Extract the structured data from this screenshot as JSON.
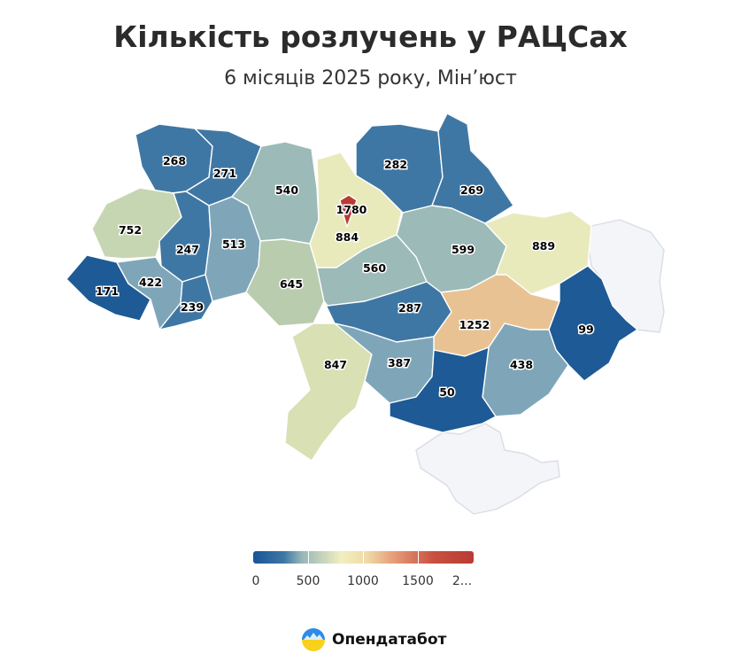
{
  "title": "Кількість розлучень у РАЦСах",
  "subtitle": "6 місяців 2025 року, Мін’юст",
  "map": {
    "value_labels": [
      "268",
      "271",
      "540",
      "1780",
      "282",
      "269",
      "752",
      "247",
      "513",
      "884",
      "599",
      "889",
      "171",
      "422",
      "645",
      "560",
      "239",
      "287",
      "1252",
      "99",
      "847",
      "387",
      "438",
      "50"
    ]
  },
  "legend": {
    "ticks": [
      "0",
      "500",
      "1000",
      "1500",
      "2..."
    ],
    "colors": [
      "#175596",
      "#95b6b8",
      "#f2efc0",
      "#e8a47e",
      "#b83c34"
    ]
  },
  "brand": {
    "name": "Опендатабот",
    "logo_icon": "opendatabot-logo-icon"
  },
  "colors": {
    "very_low": "#1d5a96",
    "low": "#3f77a4",
    "mid_low": "#5f8fb0",
    "mid": "#9bbab8",
    "mid_high": "#c7d6b2",
    "high": "#e9eabc",
    "higher": "#e9c294",
    "highest": "#b83c34",
    "no_data": "#f4f5f8"
  }
}
